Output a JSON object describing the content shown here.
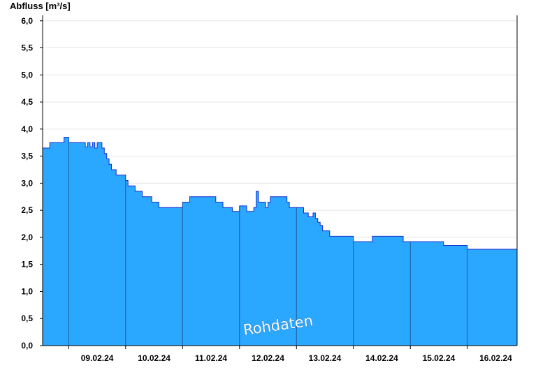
{
  "chart_data": {
    "type": "area",
    "title": "",
    "ylabel": "Abfluss [m³/s]",
    "xlabel": "",
    "ylim": [
      0,
      6.1
    ],
    "xlim": [
      "2024-02-08T13:00",
      "2024-02-16T21:00"
    ],
    "y_ticks": [
      "0,0",
      "0,5",
      "1,0",
      "1,5",
      "2,0",
      "2,5",
      "3,0",
      "3,5",
      "4,0",
      "4,5",
      "5,0",
      "5,5",
      "6,0"
    ],
    "x_ticks": [
      "09.02.24",
      "10.02.24",
      "11.02.24",
      "12.02.24",
      "13.02.24",
      "14.02.24",
      "15.02.24",
      "16.02.24"
    ],
    "grid": true,
    "fill_color": "#2aa7ff",
    "line_color": "#1a2fd0",
    "watermark": "Rohdaten",
    "series": [
      {
        "x": [
          "2024-02-08T13:00",
          "2024-02-08T14:00",
          "2024-02-08T16:00",
          "2024-02-08T22:00",
          "2024-02-09T00:00",
          "2024-02-09T02:00",
          "2024-02-09T07:00",
          "2024-02-09T08:00",
          "2024-02-09T09:00",
          "2024-02-09T10:00",
          "2024-02-09T11:00",
          "2024-02-09T12:00",
          "2024-02-09T14:00",
          "2024-02-09T15:00",
          "2024-02-09T16:00",
          "2024-02-09T17:00",
          "2024-02-09T18:00",
          "2024-02-09T20:00",
          "2024-02-10T00:00",
          "2024-02-10T01:00",
          "2024-02-10T04:00",
          "2024-02-10T07:00",
          "2024-02-10T11:00",
          "2024-02-10T14:00",
          "2024-02-10T16:00",
          "2024-02-10T18:00",
          "2024-02-11T00:00",
          "2024-02-11T02:00",
          "2024-02-11T03:00",
          "2024-02-11T07:00",
          "2024-02-11T08:00",
          "2024-02-11T14:00",
          "2024-02-11T17:00",
          "2024-02-11T21:00",
          "2024-02-12T00:00",
          "2024-02-12T03:00",
          "2024-02-12T05:00",
          "2024-02-12T06:00",
          "2024-02-12T07:00",
          "2024-02-12T08:00",
          "2024-02-12T11:00",
          "2024-02-12T12:00",
          "2024-02-12T13:00",
          "2024-02-12T15:00",
          "2024-02-12T16:00",
          "2024-02-12T17:00",
          "2024-02-12T19:00",
          "2024-02-12T20:00",
          "2024-02-12T21:00",
          "2024-02-13T03:00",
          "2024-02-13T05:00",
          "2024-02-13T07:00",
          "2024-02-13T08:00",
          "2024-02-13T09:00",
          "2024-02-13T10:00",
          "2024-02-13T11:00",
          "2024-02-13T12:00",
          "2024-02-13T14:00",
          "2024-02-13T17:00",
          "2024-02-13T20:00",
          "2024-02-14T00:00",
          "2024-02-14T08:00",
          "2024-02-14T17:00",
          "2024-02-14T18:00",
          "2024-02-14T19:00",
          "2024-02-14T21:00",
          "2024-02-14T23:00",
          "2024-02-15T00:00",
          "2024-02-15T14:00",
          "2024-02-15T23:00",
          "2024-02-16T00:00",
          "2024-02-16T11:00",
          "2024-02-16T21:00"
        ],
        "y": [
          3.65,
          3.65,
          3.75,
          3.85,
          3.75,
          3.75,
          3.67,
          3.75,
          3.67,
          3.75,
          3.65,
          3.75,
          3.65,
          3.55,
          3.45,
          3.35,
          3.25,
          3.15,
          3.05,
          2.95,
          2.85,
          2.75,
          2.65,
          2.55,
          2.55,
          2.55,
          2.65,
          2.65,
          2.75,
          2.75,
          2.75,
          2.65,
          2.55,
          2.48,
          2.58,
          2.48,
          2.48,
          2.55,
          2.85,
          2.65,
          2.55,
          2.65,
          2.75,
          2.75,
          2.75,
          2.75,
          2.75,
          2.65,
          2.55,
          2.45,
          2.38,
          2.45,
          2.35,
          2.28,
          2.22,
          2.12,
          2.12,
          2.02,
          2.02,
          2.02,
          1.92,
          2.02,
          2.02,
          2.02,
          2.02,
          1.92,
          1.92,
          1.92,
          1.85,
          1.85,
          1.78,
          1.78,
          1.78
        ]
      }
    ]
  }
}
